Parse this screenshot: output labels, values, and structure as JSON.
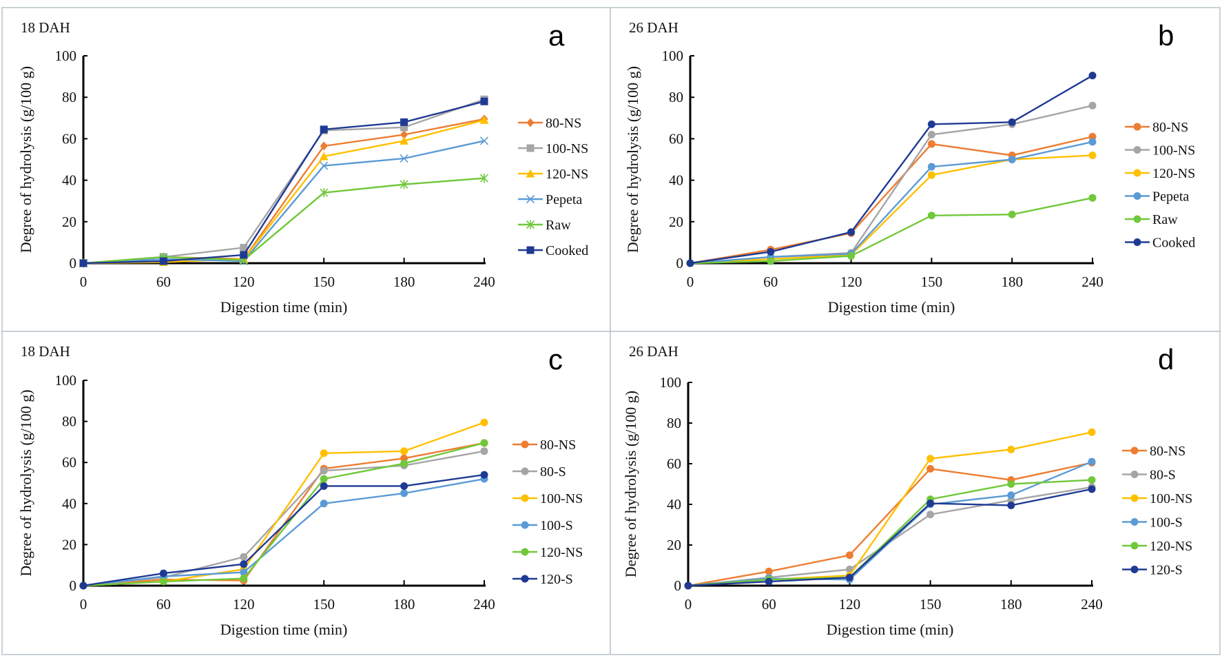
{
  "chart_data": [
    {
      "panel_letter": "a",
      "subtitle": "18 DAH",
      "type": "line",
      "xlabel": "Digestion time (min)",
      "ylabel": "Degree of hydrolysis  (g/100 g)",
      "categories": [
        "0",
        "60",
        "120",
        "150",
        "180",
        "240"
      ],
      "ylim": [
        0,
        100
      ],
      "yticks": [
        "0",
        "20",
        "40",
        "60",
        "80",
        "100"
      ],
      "legend_position": "right",
      "series": [
        {
          "name": "80-NS",
          "color": "#ED7D31",
          "marker": "diamond",
          "values": [
            0,
            3,
            2,
            56.5,
            62,
            69.5
          ]
        },
        {
          "name": "100-NS",
          "color": "#A5A5A5",
          "marker": "square",
          "values": [
            0,
            3,
            7.5,
            64,
            65.5,
            79
          ]
        },
        {
          "name": "120-NS",
          "color": "#FFC000",
          "marker": "triangle",
          "values": [
            0,
            0.5,
            2,
            51.5,
            59,
            69
          ]
        },
        {
          "name": "Pepeta",
          "color": "#5B9BD5",
          "marker": "x",
          "values": [
            0,
            2,
            1,
            47,
            50.5,
            59
          ]
        },
        {
          "name": "Raw",
          "color": "#70C83A",
          "marker": "asterisk",
          "values": [
            0,
            3,
            1.5,
            34,
            38,
            41
          ]
        },
        {
          "name": "Cooked",
          "color": "#1F3A93",
          "marker": "square",
          "values": [
            0,
            1,
            4,
            64.5,
            68,
            78
          ]
        }
      ]
    },
    {
      "panel_letter": "b",
      "subtitle": "26 DAH",
      "type": "line",
      "xlabel": "Digestion time (min)",
      "ylabel": "Degree of hydrolysis  (g/100 g)",
      "categories": [
        "0",
        "60",
        "120",
        "150",
        "180",
        "240"
      ],
      "ylim": [
        0,
        100
      ],
      "yticks": [
        "0",
        "20",
        "40",
        "60",
        "80",
        "100"
      ],
      "legend_position": "right",
      "series": [
        {
          "name": "80-NS",
          "color": "#ED7D31",
          "marker": "circle",
          "values": [
            0,
            6.5,
            14.5,
            57.5,
            52,
            61
          ]
        },
        {
          "name": "100-NS",
          "color": "#A5A5A5",
          "marker": "circle",
          "values": [
            0,
            3,
            5,
            62,
            67,
            76
          ]
        },
        {
          "name": "120-NS",
          "color": "#FFC000",
          "marker": "circle",
          "values": [
            0,
            2,
            4,
            42.5,
            50,
            52
          ]
        },
        {
          "name": "Pepeta",
          "color": "#5B9BD5",
          "marker": "circle",
          "values": [
            0,
            3,
            4.5,
            46.5,
            50,
            58.5
          ]
        },
        {
          "name": "Raw",
          "color": "#70C83A",
          "marker": "circle",
          "values": [
            0,
            1,
            3.5,
            23,
            23.5,
            31.5
          ]
        },
        {
          "name": "Cooked",
          "color": "#1F3A93",
          "marker": "circle",
          "values": [
            0,
            5.5,
            15,
            67,
            68,
            90.5
          ]
        }
      ]
    },
    {
      "panel_letter": "c",
      "subtitle": "18 DAH",
      "type": "line",
      "xlabel": "Digestion time (min)",
      "ylabel": "Degree of hydrolysis  (g/100 g)",
      "categories": [
        "0",
        "60",
        "120",
        "150",
        "180",
        "240"
      ],
      "ylim": [
        0,
        100
      ],
      "yticks": [
        "0",
        "20",
        "40",
        "60",
        "80",
        "100"
      ],
      "legend_position": "right",
      "series": [
        {
          "name": "80-NS",
          "color": "#ED7D31",
          "marker": "circle",
          "values": [
            0,
            3,
            2.5,
            57,
            62,
            69.5
          ]
        },
        {
          "name": "80-S",
          "color": "#A5A5A5",
          "marker": "circle",
          "values": [
            0,
            4,
            14,
            56,
            58.5,
            65.5
          ]
        },
        {
          "name": "100-NS",
          "color": "#FFC000",
          "marker": "circle",
          "values": [
            0,
            2,
            8,
            64.5,
            65.5,
            79.5
          ]
        },
        {
          "name": "100-S",
          "color": "#5B9BD5",
          "marker": "circle",
          "values": [
            0,
            4.5,
            6.5,
            40,
            45,
            52
          ]
        },
        {
          "name": "120-NS",
          "color": "#70C83A",
          "marker": "circle",
          "values": [
            0,
            2,
            3.5,
            52,
            59.5,
            69.5
          ]
        },
        {
          "name": "120-S",
          "color": "#1F3A93",
          "marker": "circle",
          "values": [
            0,
            6,
            10.5,
            48.5,
            48.5,
            54
          ]
        }
      ]
    },
    {
      "panel_letter": "d",
      "subtitle": "26 DAH",
      "type": "line",
      "xlabel": "Digestion time (min)",
      "ylabel": "Degree of hydrolysis  (g/100 g)",
      "categories": [
        "0",
        "60",
        "120",
        "150",
        "180",
        "240"
      ],
      "ylim": [
        0,
        100
      ],
      "yticks": [
        "0",
        "20",
        "40",
        "60",
        "80",
        "100"
      ],
      "legend_position": "right",
      "series": [
        {
          "name": "80-NS",
          "color": "#ED7D31",
          "marker": "circle",
          "values": [
            0,
            7,
            15,
            57.5,
            52,
            60.5
          ]
        },
        {
          "name": "80-S",
          "color": "#A5A5A5",
          "marker": "circle",
          "values": [
            0,
            4,
            8,
            35,
            42,
            48.5
          ]
        },
        {
          "name": "100-NS",
          "color": "#FFC000",
          "marker": "circle",
          "values": [
            0,
            3,
            5,
            62.5,
            67,
            75.5
          ]
        },
        {
          "name": "100-S",
          "color": "#5B9BD5",
          "marker": "circle",
          "values": [
            0,
            3.5,
            3,
            40,
            44.5,
            61
          ]
        },
        {
          "name": "120-NS",
          "color": "#70C83A",
          "marker": "circle",
          "values": [
            0,
            3,
            4,
            42.5,
            50,
            52
          ]
        },
        {
          "name": "120-S",
          "color": "#1F3A93",
          "marker": "circle",
          "values": [
            0,
            2,
            4,
            40.5,
            39.5,
            47.5
          ]
        }
      ]
    }
  ]
}
